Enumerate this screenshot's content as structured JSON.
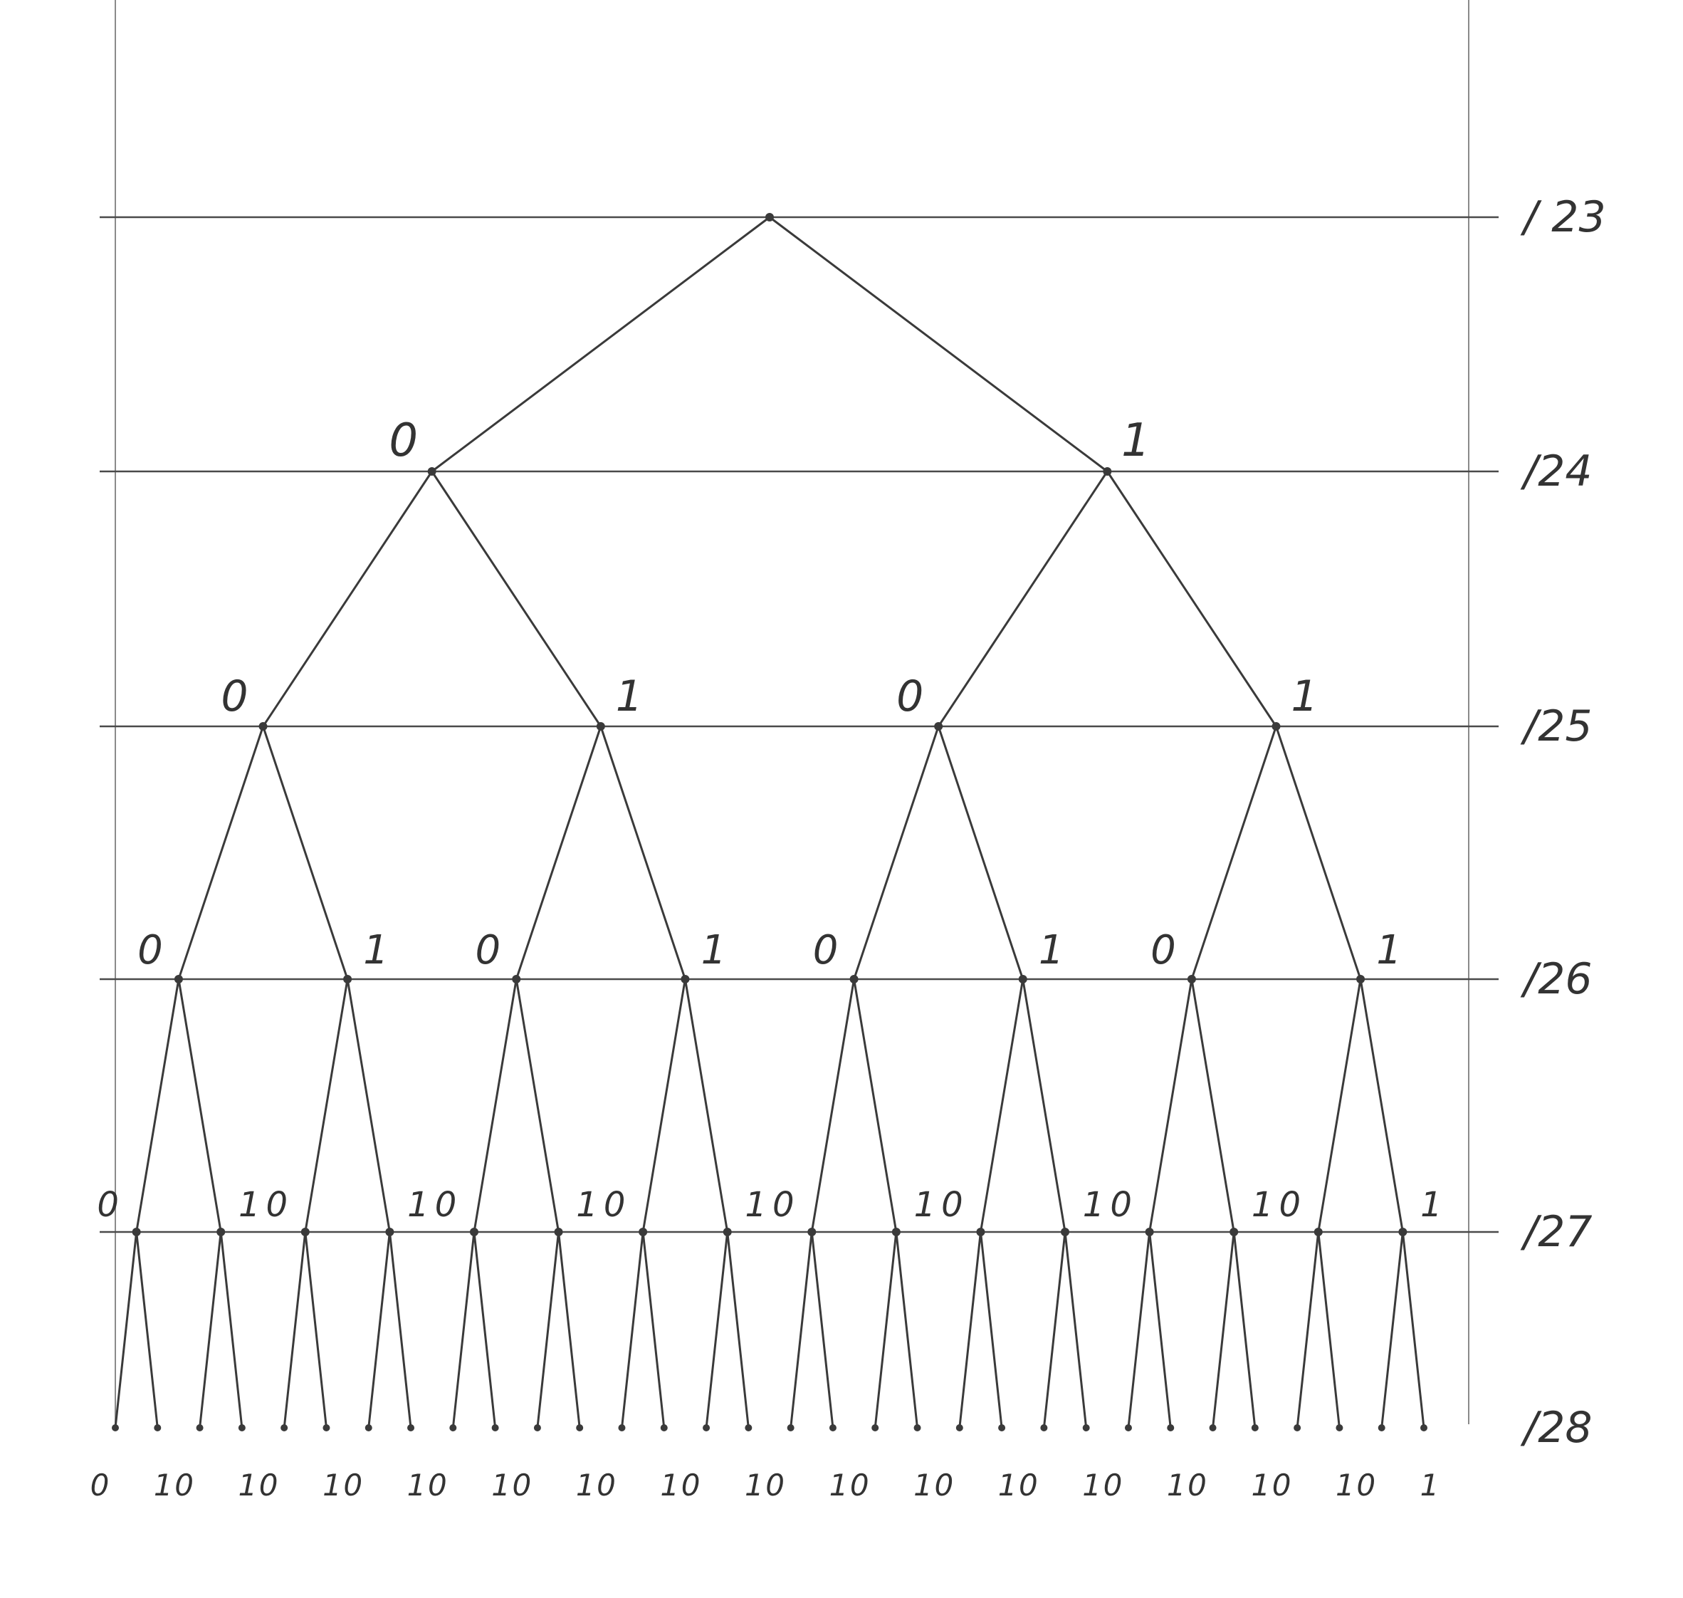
{
  "diagram": {
    "type": "binary-tree",
    "depth": 5,
    "edge_labels": {
      "left": "0",
      "right": "1"
    },
    "levels": [
      {
        "label": "/ 23"
      },
      {
        "label": "/24"
      },
      {
        "label": "/25"
      },
      {
        "label": "/26"
      },
      {
        "label": "/27"
      },
      {
        "label": "/28"
      }
    ],
    "colors": {
      "ink": "#3a3a3a",
      "paper": "#ffffff"
    }
  }
}
